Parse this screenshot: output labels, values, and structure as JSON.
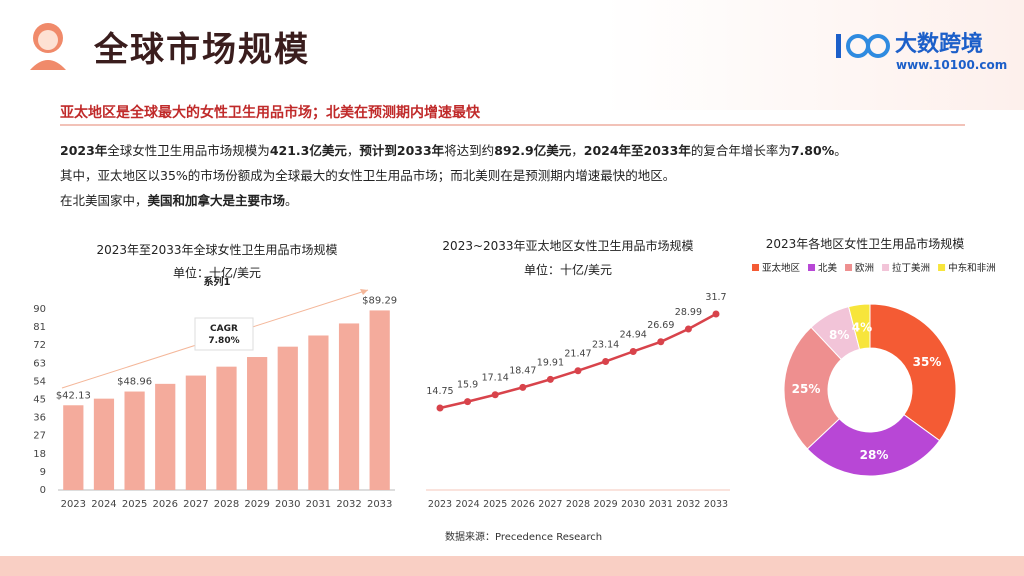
{
  "header": {
    "title": "全球市场规模",
    "logo_text": "大数跨境",
    "logo_url": "www.10100.com"
  },
  "subtitle": "亚太地区是全球最大的女性卫生用品市场；北美在预测期内增速最快",
  "paragraphs": [
    [
      {
        "text": "2023年",
        "bold": true
      },
      {
        "text": "全球女性卫生用品市场规模为",
        "bold": false
      },
      {
        "text": "421.3亿美元",
        "bold": true
      },
      {
        "text": "，",
        "bold": false
      },
      {
        "text": "预计到2033年",
        "bold": true
      },
      {
        "text": "将达到约",
        "bold": false
      },
      {
        "text": "892.9亿美元",
        "bold": true
      },
      {
        "text": "，",
        "bold": false
      },
      {
        "text": "2024年至2033年",
        "bold": true
      },
      {
        "text": "的复合年增长率为",
        "bold": false
      },
      {
        "text": "7.80%",
        "bold": true
      },
      {
        "text": "。",
        "bold": false
      }
    ],
    [
      {
        "text": "其中，亚太地区以35%的市场份额成为全球最大的女性卫生用品市场；而北美则在是预测期内增速最快的地区。",
        "bold": false
      }
    ],
    [
      {
        "text": "在北美国家中，",
        "bold": false
      },
      {
        "text": "美国和加拿大是主要市场",
        "bold": true
      },
      {
        "text": "。",
        "bold": false
      }
    ]
  ],
  "chart_data": [
    {
      "type": "bar",
      "title": "2023年至2033年全球女性卫生用品市场规模",
      "subtitle": "单位：十亿/美元",
      "series_name": "系列1",
      "categories": [
        "2023",
        "2024",
        "2025",
        "2026",
        "2027",
        "2028",
        "2029",
        "2030",
        "2031",
        "2032",
        "2033"
      ],
      "values": [
        42.13,
        45.42,
        48.96,
        52.78,
        56.9,
        61.33,
        66.12,
        71.27,
        76.83,
        82.82,
        89.29
      ],
      "value_labels": [
        "$42.13",
        null,
        "$48.96",
        null,
        null,
        null,
        null,
        null,
        null,
        null,
        "$89.29"
      ],
      "color": "#f4ab9c",
      "ylim": [
        0,
        90
      ],
      "yticks": [
        0,
        9,
        18,
        27,
        36,
        45,
        54,
        63,
        72,
        81,
        90
      ],
      "annotation": [
        "CAGR",
        "7.80%"
      ]
    },
    {
      "type": "line",
      "title": "2023~2033年亚太地区女性卫生用品市场规模",
      "subtitle": "单位：十亿/美元",
      "categories": [
        "2023",
        "2024",
        "2025",
        "2026",
        "2027",
        "2028",
        "2029",
        "2030",
        "2031",
        "2032",
        "2033"
      ],
      "values": [
        14.75,
        15.9,
        17.14,
        18.47,
        19.91,
        21.47,
        23.14,
        24.94,
        26.69,
        28.99,
        31.7
      ],
      "color": "#d8434b"
    },
    {
      "type": "pie",
      "title": "2023年各地区女性卫生用品市场规模",
      "donut": true,
      "categories": [
        "亚太地区",
        "北美",
        "欧洲",
        "拉丁美洲",
        "中东和非洲"
      ],
      "values": [
        35,
        28,
        25,
        8,
        4
      ],
      "value_labels": [
        "35%",
        "28%",
        "25%",
        "8%",
        "4%"
      ],
      "colors": [
        "#f45b34",
        "#b847d6",
        "#ee8f8f",
        "#f2c4d8",
        "#f7e53b"
      ]
    }
  ],
  "source": "数据来源：Precedence Research"
}
